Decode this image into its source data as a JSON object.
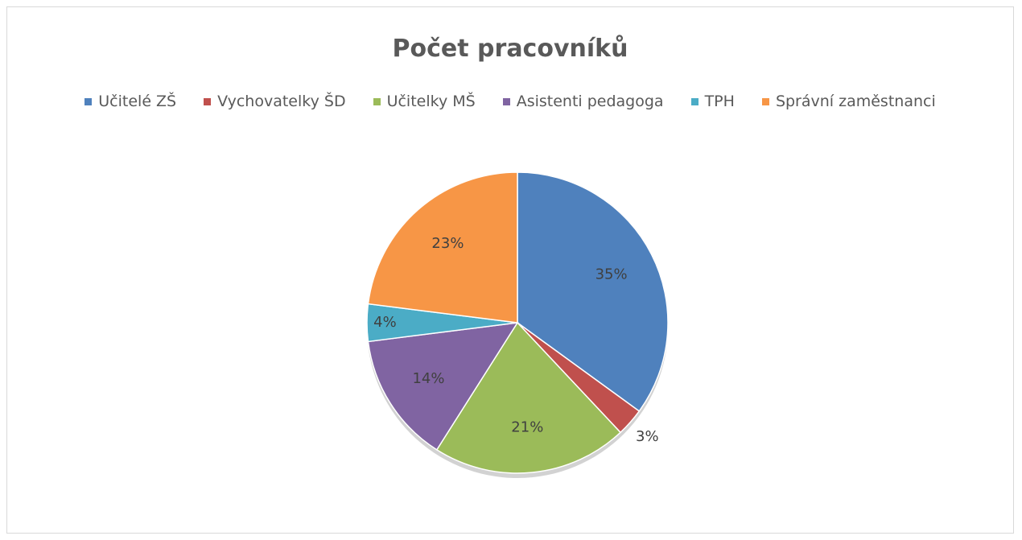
{
  "chart_data": {
    "type": "pie",
    "title": "Počet pracovníků",
    "categories": [
      "Učitelé ZŠ",
      "Vychovatelky ŠD",
      "Učitelky MŠ",
      "Asistenti pedagoga",
      "TPH",
      "Správní zaměstnanci"
    ],
    "values": [
      35,
      3,
      21,
      14,
      4,
      23
    ],
    "value_labels": [
      "35%",
      "3%",
      "21%",
      "14%",
      "4%",
      "23%"
    ],
    "colors": [
      "#4f81bd",
      "#c0504d",
      "#9bbb59",
      "#8064a2",
      "#4bacc6",
      "#f79646"
    ],
    "legend": "top"
  }
}
